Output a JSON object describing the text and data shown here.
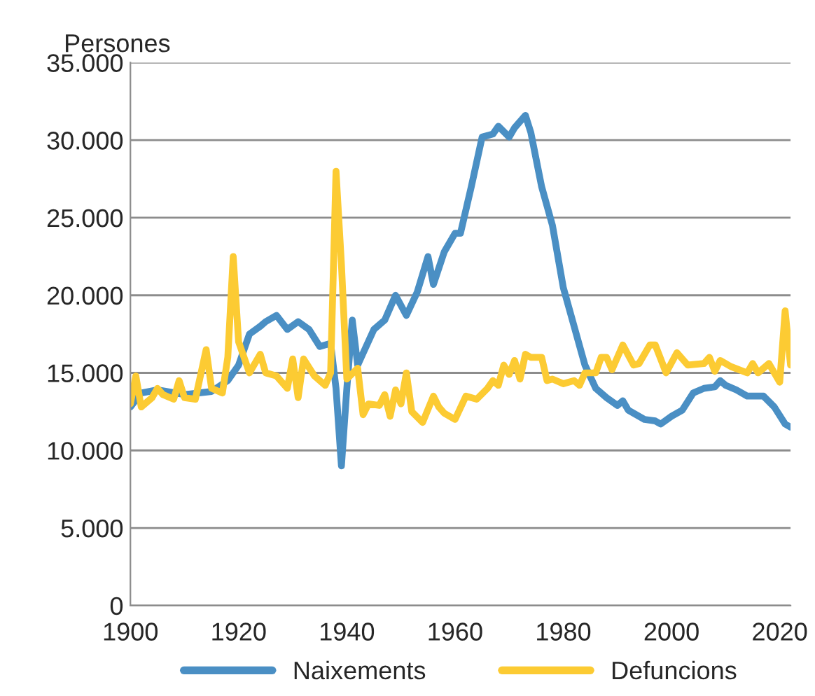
{
  "chart_data": {
    "type": "line",
    "ylabel": "Persones",
    "xlim": [
      1900,
      2022
    ],
    "xticks": [
      1900,
      1920,
      1940,
      1960,
      1980,
      2000,
      2020
    ],
    "ylim": [
      0,
      35000
    ],
    "yticks": [
      {
        "value": 0,
        "label": "0"
      },
      {
        "value": 5000,
        "label": "5.000"
      },
      {
        "value": 10000,
        "label": "10.000"
      },
      {
        "value": 15000,
        "label": "15.000"
      },
      {
        "value": 20000,
        "label": "20.000"
      },
      {
        "value": 25000,
        "label": "25.000"
      },
      {
        "value": 30000,
        "label": "30.000"
      },
      {
        "value": 35000,
        "label": "35.000"
      }
    ],
    "grid": "y",
    "legend": "bottom",
    "marker": "none",
    "line_style": "solid",
    "series": [
      {
        "name": "Naixements",
        "color": "#4a8fc4",
        "x": [
          1900,
          1902,
          1905,
          1910,
          1915,
          1918,
          1920,
          1922,
          1924,
          1925,
          1927,
          1929,
          1931,
          1933,
          1935,
          1937,
          1938,
          1939,
          1940,
          1941,
          1942,
          1945,
          1947,
          1949,
          1951,
          1953,
          1955,
          1956,
          1958,
          1960,
          1961,
          1963,
          1965,
          1967,
          1968,
          1970,
          1971,
          1973,
          1974,
          1976,
          1978,
          1980,
          1982,
          1984,
          1986,
          1988,
          1990,
          1991,
          1992,
          1995,
          1997,
          1998,
          2000,
          2002,
          2004,
          2006,
          2008,
          2009,
          2010,
          2012,
          2014,
          2017,
          2019,
          2021,
          2022
        ],
        "values": [
          12800,
          13700,
          13900,
          13600,
          13800,
          14500,
          15500,
          17500,
          18000,
          18300,
          18700,
          17800,
          18300,
          17800,
          16700,
          16900,
          14000,
          9000,
          14000,
          18400,
          15500,
          17800,
          18400,
          20000,
          18700,
          20200,
          22500,
          20700,
          22800,
          24000,
          24000,
          27000,
          30200,
          30400,
          30900,
          30200,
          30800,
          31600,
          30500,
          27000,
          24500,
          20500,
          18000,
          15500,
          14000,
          13400,
          12900,
          13200,
          12600,
          12000,
          11900,
          11700,
          12200,
          12600,
          13700,
          14000,
          14100,
          14500,
          14200,
          13900,
          13500,
          13500,
          12800,
          11700,
          11500
        ]
      },
      {
        "name": "Defuncions",
        "color": "#fccb33",
        "x": [
          1900,
          1901,
          1902,
          1904,
          1905,
          1906,
          1908,
          1909,
          1910,
          1912,
          1914,
          1915,
          1917,
          1918,
          1919,
          1920,
          1922,
          1924,
          1925,
          1927,
          1929,
          1930,
          1931,
          1932,
          1934,
          1936,
          1937,
          1938,
          1939,
          1940,
          1942,
          1943,
          1944,
          1946,
          1947,
          1948,
          1949,
          1950,
          1951,
          1952,
          1954,
          1956,
          1957,
          1958,
          1960,
          1962,
          1964,
          1966,
          1967,
          1968,
          1969,
          1970,
          1971,
          1972,
          1973,
          1974,
          1976,
          1977,
          1978,
          1980,
          1982,
          1983,
          1984,
          1986,
          1987,
          1988,
          1989,
          1990,
          1991,
          1993,
          1994,
          1996,
          1997,
          1999,
          2001,
          2003,
          2006,
          2007,
          2008,
          2009,
          2011,
          2014,
          2015,
          2016,
          2018,
          2019,
          2020,
          2021,
          2022
        ],
        "values": [
          13000,
          14800,
          12800,
          13400,
          14000,
          13600,
          13300,
          14500,
          13400,
          13300,
          16500,
          14000,
          13700,
          16000,
          22500,
          17000,
          15000,
          16200,
          15000,
          14800,
          14000,
          15900,
          13400,
          15900,
          14800,
          14200,
          15000,
          28000,
          22000,
          14600,
          15300,
          12300,
          13000,
          12900,
          13600,
          12200,
          13900,
          13000,
          15000,
          12500,
          11800,
          13500,
          12800,
          12400,
          12000,
          13500,
          13300,
          14000,
          14500,
          14200,
          15500,
          14900,
          15800,
          14600,
          16200,
          16000,
          16000,
          14500,
          14600,
          14300,
          14500,
          14200,
          15000,
          15000,
          16000,
          16000,
          15200,
          16000,
          16800,
          15500,
          15600,
          16800,
          16800,
          15000,
          16300,
          15500,
          15600,
          16000,
          15100,
          15800,
          15400,
          15000,
          15600,
          15000,
          15600,
          15000,
          14400,
          19000,
          15500
        ]
      }
    ]
  }
}
